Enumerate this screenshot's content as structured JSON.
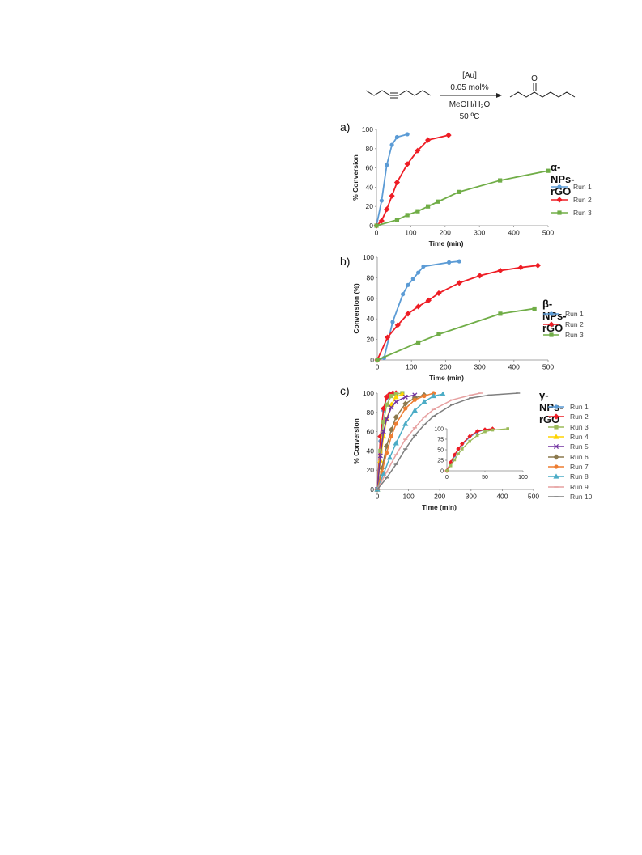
{
  "scheme": {
    "catalyst": "[Au]",
    "loading": "0.05 mol%",
    "solvent": "MeOH/H₂O",
    "temperature": "50 ºC",
    "product_atom": "O"
  },
  "colors": {
    "blue": "#5b9bd5",
    "red": "#ee1c24",
    "green": "#70ad47",
    "yellow": "#ffd400",
    "purple": "#7030a0",
    "olive": "#8c7a4e",
    "orange": "#ed7d31",
    "cyan": "#4bacc6",
    "pink": "#e6a0a0",
    "gray": "#7f7f7f"
  },
  "chart_data": [
    {
      "id": "a",
      "panel_label": "a)",
      "type": "line",
      "title": "α-NPs-rGO",
      "xlabel": "Time (min)",
      "ylabel": "% Conversion",
      "xlim": [
        0,
        500
      ],
      "ylim": [
        0,
        100
      ],
      "xticks": [
        0,
        100,
        200,
        300,
        400,
        500
      ],
      "yticks": [
        0,
        20,
        40,
        60,
        80,
        100
      ],
      "series": [
        {
          "name": "Run 1",
          "color": "#5b9bd5",
          "marker": "circle",
          "x": [
            0,
            15,
            30,
            45,
            60,
            90
          ],
          "y": [
            0,
            26,
            63,
            84,
            92,
            95
          ]
        },
        {
          "name": "Run 2",
          "color": "#ee1c24",
          "marker": "diamond",
          "x": [
            0,
            15,
            30,
            45,
            60,
            90,
            120,
            150,
            210
          ],
          "y": [
            0,
            5,
            17,
            31,
            45,
            64,
            78,
            89,
            94
          ]
        },
        {
          "name": "Run 3",
          "color": "#70ad47",
          "marker": "square",
          "x": [
            0,
            60,
            90,
            120,
            150,
            180,
            240,
            360,
            500
          ],
          "y": [
            0,
            6,
            11,
            15,
            20,
            25,
            35,
            47,
            57
          ]
        }
      ]
    },
    {
      "id": "b",
      "panel_label": "b)",
      "type": "line",
      "title": "β-NPs-rGO",
      "xlabel": "Time (min)",
      "ylabel": "Conversion (%)",
      "xlim": [
        0,
        500
      ],
      "ylim": [
        0,
        100
      ],
      "xticks": [
        0,
        100,
        200,
        300,
        400,
        500
      ],
      "yticks": [
        0,
        20,
        40,
        60,
        80,
        100
      ],
      "series": [
        {
          "name": "Run 1",
          "color": "#5b9bd5",
          "marker": "circle",
          "x": [
            0,
            20,
            45,
            75,
            90,
            105,
            120,
            135,
            210,
            240
          ],
          "y": [
            0,
            2,
            37,
            64,
            73,
            79,
            85,
            91,
            95,
            96
          ]
        },
        {
          "name": "Run 2",
          "color": "#ee1c24",
          "marker": "diamond",
          "x": [
            0,
            30,
            60,
            90,
            120,
            150,
            180,
            240,
            300,
            360,
            420,
            470
          ],
          "y": [
            0,
            22,
            34,
            45,
            52,
            58,
            65,
            75,
            82,
            87,
            90,
            92
          ]
        },
        {
          "name": "Run 3",
          "color": "#70ad47",
          "marker": "square",
          "x": [
            0,
            120,
            180,
            360,
            460
          ],
          "y": [
            0,
            17,
            25,
            45,
            50
          ]
        }
      ]
    },
    {
      "id": "c",
      "panel_label": "c)",
      "type": "line",
      "title": "γ-NPs-rGO",
      "xlabel": "Time (min)",
      "ylabel": "% Conversion",
      "xlim": [
        0,
        500
      ],
      "ylim": [
        0,
        100
      ],
      "xticks": [
        0,
        100,
        200,
        300,
        400,
        500
      ],
      "yticks": [
        0,
        20,
        40,
        60,
        80,
        100
      ],
      "series": [
        {
          "name": "Run 1",
          "color": "#5b9bd5",
          "marker": "circle",
          "x": [
            0,
            10,
            20,
            30,
            40,
            50,
            60
          ],
          "y": [
            0,
            50,
            82,
            95,
            99,
            100,
            100
          ]
        },
        {
          "name": "Run 2",
          "color": "#ee1c24",
          "marker": "diamond",
          "x": [
            0,
            10,
            20,
            30,
            40,
            50,
            60
          ],
          "y": [
            0,
            55,
            84,
            96,
            99,
            100,
            100
          ]
        },
        {
          "name": "Run 3",
          "color": "#9bbb59",
          "marker": "square",
          "x": [
            0,
            10,
            20,
            30,
            45,
            60,
            80
          ],
          "y": [
            0,
            40,
            70,
            88,
            97,
            99,
            100
          ]
        },
        {
          "name": "Run 4",
          "color": "#ffd400",
          "marker": "triangle",
          "x": [
            0,
            10,
            20,
            30,
            45,
            60,
            80
          ],
          "y": [
            0,
            30,
            55,
            73,
            88,
            96,
            99
          ]
        },
        {
          "name": "Run 5",
          "color": "#7030a0",
          "marker": "x",
          "x": [
            0,
            10,
            20,
            30,
            45,
            60,
            90,
            120
          ],
          "y": [
            0,
            35,
            60,
            73,
            85,
            91,
            96,
            98
          ]
        },
        {
          "name": "Run 6",
          "color": "#8c7a4e",
          "marker": "diamond",
          "x": [
            0,
            15,
            30,
            45,
            60,
            90,
            120,
            150
          ],
          "y": [
            0,
            22,
            45,
            62,
            75,
            89,
            95,
            98
          ]
        },
        {
          "name": "Run 7",
          "color": "#ed7d31",
          "marker": "circle",
          "x": [
            0,
            15,
            30,
            45,
            60,
            90,
            120,
            150,
            180
          ],
          "y": [
            0,
            18,
            38,
            55,
            68,
            84,
            93,
            97,
            100
          ]
        },
        {
          "name": "Run 8",
          "color": "#4bacc6",
          "marker": "triangle",
          "x": [
            0,
            20,
            40,
            60,
            90,
            120,
            150,
            180,
            210
          ],
          "y": [
            0,
            16,
            33,
            48,
            68,
            82,
            91,
            97,
            99
          ]
        },
        {
          "name": "Run 9",
          "color": "#e6a0a0",
          "marker": "dash",
          "x": [
            0,
            30,
            60,
            90,
            120,
            150,
            180,
            240,
            300,
            330
          ],
          "y": [
            0,
            18,
            36,
            52,
            64,
            75,
            83,
            93,
            98,
            100
          ]
        },
        {
          "name": "Run 10",
          "color": "#7f7f7f",
          "marker": "dash",
          "x": [
            0,
            30,
            60,
            90,
            120,
            150,
            180,
            240,
            300,
            360,
            450
          ],
          "y": [
            0,
            12,
            26,
            42,
            56,
            67,
            76,
            88,
            95,
            98,
            100
          ]
        }
      ],
      "inset": {
        "xlim": [
          0,
          100
        ],
        "ylim": [
          0,
          100
        ],
        "xticks": [
          0,
          50,
          100
        ],
        "yticks": [
          0,
          25,
          50,
          75,
          100
        ],
        "series": [
          {
            "name": "Run 1",
            "color": "#5b9bd5",
            "marker": "circle",
            "x": [
              0,
              5,
              10,
              15,
              20,
              30,
              40,
              50,
              60
            ],
            "y": [
              0,
              18,
              35,
              50,
              62,
              80,
              92,
              98,
              100
            ]
          },
          {
            "name": "Run 2",
            "color": "#ee1c24",
            "marker": "diamond",
            "x": [
              0,
              5,
              10,
              15,
              20,
              30,
              40,
              50,
              60
            ],
            "y": [
              0,
              20,
              38,
              52,
              64,
              82,
              94,
              98,
              100
            ]
          },
          {
            "name": "Run 3",
            "color": "#9bbb59",
            "marker": "square",
            "x": [
              0,
              5,
              10,
              15,
              20,
              30,
              40,
              50,
              60,
              80
            ],
            "y": [
              0,
              12,
              26,
              40,
              52,
              70,
              84,
              93,
              97,
              100
            ]
          }
        ]
      }
    }
  ]
}
